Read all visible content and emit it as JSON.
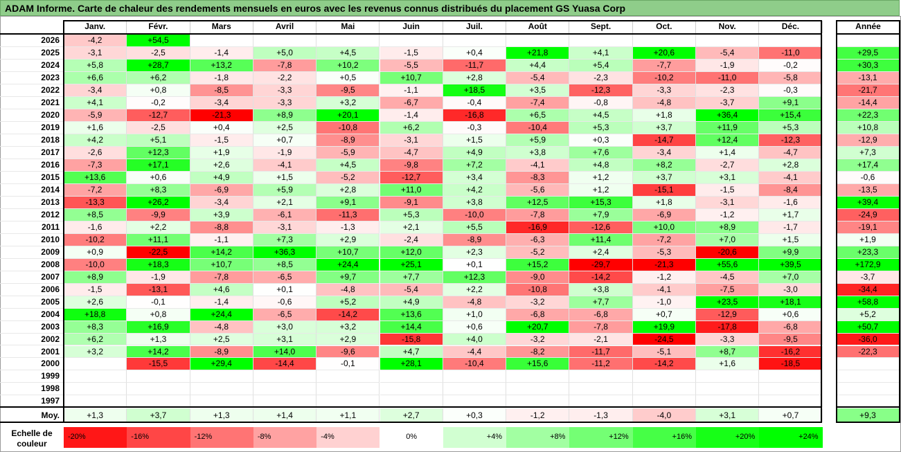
{
  "title": "ADAM Informe. Carte de chaleur des rendements mensuels en euros avec les revenus connus distribués du placement GS Yuasa Corp",
  "months": [
    "Janv.",
    "Févr.",
    "Mars",
    "Avril",
    "Mai",
    "Juin",
    "Juil.",
    "Août",
    "Sept.",
    "Oct.",
    "Nov.",
    "Déc."
  ],
  "year_header": "Année",
  "avg_label": "Moy.",
  "scale_label_line1": "Echelle de",
  "scale_label_line2": "couleur",
  "colors": {
    "negative": "#ff0000",
    "positive": "#00ff00",
    "neutral": "#ffffff",
    "title_bg": "#8fcd8a"
  },
  "chart_data": {
    "type": "heatmap",
    "title": "ADAM Informe. Carte de chaleur des rendements mensuels en euros avec les revenus connus distribués du placement GS Yuasa Corp",
    "rows": [
      {
        "year": "2026",
        "values": [
          "-4,2",
          "+54,5",
          "",
          "",
          "",
          "",
          "",
          "",
          "",
          "",
          "",
          ""
        ],
        "annual": ""
      },
      {
        "year": "2025",
        "values": [
          "-3,1",
          "-2,5",
          "-1,4",
          "+5,0",
          "+4,5",
          "-1,5",
          "+0,4",
          "+21,8",
          "+4,1",
          "+20,6",
          "-5,4",
          "-11,0"
        ],
        "annual": "+29,5"
      },
      {
        "year": "2024",
        "values": [
          "+5,8",
          "+28,7",
          "+13,2",
          "-7,8",
          "+10,2",
          "-5,5",
          "-11,7",
          "+4,4",
          "+5,4",
          "-7,7",
          "-1,9",
          "-0,2"
        ],
        "annual": "+30,3"
      },
      {
        "year": "2023",
        "values": [
          "+6,6",
          "+6,2",
          "-1,8",
          "-2,2",
          "+0,5",
          "+10,7",
          "+2,8",
          "-5,4",
          "-2,3",
          "-10,2",
          "-11,0",
          "-5,8"
        ],
        "annual": "-13,1"
      },
      {
        "year": "2022",
        "values": [
          "-3,4",
          "+0,8",
          "-8,5",
          "-3,3",
          "-9,5",
          "-1,1",
          "+18,5",
          "+3,5",
          "-12,3",
          "-3,3",
          "-2,3",
          "-0,3"
        ],
        "annual": "-21,7"
      },
      {
        "year": "2021",
        "values": [
          "+4,1",
          "-0,2",
          "-3,4",
          "-3,3",
          "+3,2",
          "-6,7",
          "-0,4",
          "-7,4",
          "-0,8",
          "-4,8",
          "-3,7",
          "+9,1"
        ],
        "annual": "-14,4"
      },
      {
        "year": "2020",
        "values": [
          "-5,9",
          "-12,7",
          "-21,3",
          "+8,9",
          "+20,1",
          "-1,4",
          "-16,8",
          "+6,5",
          "+4,5",
          "+1,8",
          "+36,4",
          "+15,4"
        ],
        "annual": "+22,3"
      },
      {
        "year": "2019",
        "values": [
          "+1,6",
          "-2,5",
          "+0,4",
          "+2,5",
          "-10,8",
          "+6,2",
          "-0,3",
          "-10,4",
          "+5,3",
          "+3,7",
          "+11,9",
          "+5,3"
        ],
        "annual": "+10,8"
      },
      {
        "year": "2018",
        "values": [
          "+4,2",
          "+5,1",
          "-1,5",
          "+0,7",
          "-8,9",
          "-3,1",
          "+1,5",
          "+5,9",
          "+0,3",
          "-14,7",
          "+12,4",
          "-12,3"
        ],
        "annual": "-12,9"
      },
      {
        "year": "2017",
        "values": [
          "-2,6",
          "+12,3",
          "+1,9",
          "-1,9",
          "-5,9",
          "-4,7",
          "+4,9",
          "+3,8",
          "+7,6",
          "-3,4",
          "+1,4",
          "-4,7"
        ],
        "annual": "+7,3"
      },
      {
        "year": "2016",
        "values": [
          "-7,3",
          "+17,1",
          "+2,6",
          "-4,1",
          "+4,5",
          "-9,8",
          "+7,2",
          "-4,1",
          "+4,8",
          "+8,2",
          "-2,7",
          "+2,8"
        ],
        "annual": "+17,4"
      },
      {
        "year": "2015",
        "values": [
          "+13,6",
          "+0,6",
          "+4,9",
          "+1,5",
          "-5,2",
          "-12,7",
          "+3,4",
          "-8,3",
          "+1,2",
          "+3,7",
          "+3,1",
          "-4,1"
        ],
        "annual": "-0,6"
      },
      {
        "year": "2014",
        "values": [
          "-7,2",
          "+8,3",
          "-6,9",
          "+5,9",
          "+2,8",
          "+11,0",
          "+4,2",
          "-5,6",
          "+1,2",
          "-15,1",
          "-1,5",
          "-8,4"
        ],
        "annual": "-13,5"
      },
      {
        "year": "2013",
        "values": [
          "-13,3",
          "+26,2",
          "-3,4",
          "+2,1",
          "+9,1",
          "-9,1",
          "+3,8",
          "+12,5",
          "+15,3",
          "+1,8",
          "-3,1",
          "-1,6"
        ],
        "annual": "+39,4"
      },
      {
        "year": "2012",
        "values": [
          "+8,5",
          "-9,9",
          "+3,9",
          "-6,1",
          "-11,3",
          "+5,3",
          "-10,0",
          "-7,8",
          "+7,9",
          "-6,9",
          "-1,2",
          "+1,7"
        ],
        "annual": "-24,9"
      },
      {
        "year": "2011",
        "values": [
          "-1,6",
          "+2,2",
          "-8,8",
          "-3,1",
          "-1,3",
          "+2,1",
          "+5,5",
          "-16,9",
          "-12,6",
          "+10,0",
          "+8,9",
          "-1,7"
        ],
        "annual": "-19,1"
      },
      {
        "year": "2010",
        "values": [
          "-10,2",
          "+11,1",
          "-1,1",
          "+7,3",
          "+2,9",
          "-2,4",
          "-8,9",
          "-6,3",
          "+11,4",
          "-7,2",
          "+7,0",
          "+1,5"
        ],
        "annual": "+1,9"
      },
      {
        "year": "2009",
        "values": [
          "+0,9",
          "-22,5",
          "+14,2",
          "+36,3",
          "+10,7",
          "+12,0",
          "+2,3",
          "-5,2",
          "+2,4",
          "-5,3",
          "-20,6",
          "+9,9"
        ],
        "annual": "+23,3"
      },
      {
        "year": "2008",
        "values": [
          "-10,0",
          "+18,3",
          "+10,7",
          "+8,5",
          "+24,4",
          "+25,1",
          "+0,1",
          "+15,2",
          "-29,7",
          "-21,3",
          "+55,6",
          "+39,5"
        ],
        "annual": "+172,9"
      },
      {
        "year": "2007",
        "values": [
          "+8,9",
          "-1,9",
          "-7,8",
          "-6,5",
          "+9,7",
          "+7,7",
          "+12,3",
          "-9,0",
          "-14,2",
          "-1,2",
          "-4,5",
          "+7,0"
        ],
        "annual": "-3,7"
      },
      {
        "year": "2006",
        "values": [
          "-1,5",
          "-13,1",
          "+4,6",
          "+0,1",
          "-4,8",
          "-5,4",
          "+2,2",
          "-10,8",
          "+3,8",
          "-4,1",
          "-7,5",
          "-3,0"
        ],
        "annual": "-34,4"
      },
      {
        "year": "2005",
        "values": [
          "+2,6",
          "-0,1",
          "-1,4",
          "-0,6",
          "+5,2",
          "+4,9",
          "-4,8",
          "-3,2",
          "+7,7",
          "-1,0",
          "+23,5",
          "+18,1"
        ],
        "annual": "+58,8"
      },
      {
        "year": "2004",
        "values": [
          "+18,8",
          "+0,8",
          "+24,4",
          "-6,5",
          "-14,2",
          "+13,6",
          "+1,0",
          "-6,8",
          "-6,8",
          "+0,7",
          "-12,9",
          "+0,6"
        ],
        "annual": "+5,2"
      },
      {
        "year": "2003",
        "values": [
          "+8,3",
          "+16,9",
          "-4,8",
          "+3,0",
          "+3,2",
          "+14,4",
          "+0,6",
          "+20,7",
          "-7,8",
          "+19,9",
          "-17,8",
          "-6,8"
        ],
        "annual": "+50,7"
      },
      {
        "year": "2002",
        "values": [
          "+6,2",
          "+1,3",
          "+2,5",
          "+3,1",
          "+2,9",
          "-15,8",
          "+4,0",
          "-3,2",
          "-2,1",
          "-24,5",
          "-3,3",
          "-9,5"
        ],
        "annual": "-36,0"
      },
      {
        "year": "2001",
        "values": [
          "+3,2",
          "+14,2",
          "-8,9",
          "+14,0",
          "-9,6",
          "+4,7",
          "-4,4",
          "-8,2",
          "-11,7",
          "-5,1",
          "+8,7",
          "-16,2"
        ],
        "annual": "-22,3"
      },
      {
        "year": "2000",
        "values": [
          "",
          "-15,5",
          "+29,4",
          "-14,4",
          "-0,1",
          "+28,1",
          "-10,4",
          "+15,6",
          "-11,2",
          "-14,2",
          "+1,6",
          "-18,5"
        ],
        "annual": ""
      },
      {
        "year": "1999",
        "values": [
          "",
          "",
          "",
          "",
          "",
          "",
          "",
          "",
          "",
          "",
          "",
          ""
        ],
        "annual": ""
      },
      {
        "year": "1998",
        "values": [
          "",
          "",
          "",
          "",
          "",
          "",
          "",
          "",
          "",
          "",
          "",
          ""
        ],
        "annual": ""
      },
      {
        "year": "1997",
        "values": [
          "",
          "",
          "",
          "",
          "",
          "",
          "",
          "",
          "",
          "",
          "",
          ""
        ],
        "annual": ""
      }
    ],
    "averages": [
      "+1,3",
      "+3,7",
      "+1,3",
      "+1,4",
      "+1,1",
      "+2,7",
      "+0,3",
      "-1,2",
      "-1,3",
      "-4,0",
      "+3,1",
      "+0,7"
    ],
    "average_annual": "+9,3",
    "scale": [
      {
        "label": "-20%",
        "value": -20
      },
      {
        "label": "-16%",
        "value": -16
      },
      {
        "label": "-12%",
        "value": -12
      },
      {
        "label": "-8%",
        "value": -8
      },
      {
        "label": "-4%",
        "value": -4
      },
      {
        "label": "0%",
        "value": 0
      },
      {
        "label": "+4%",
        "value": 4
      },
      {
        "label": "+8%",
        "value": 8
      },
      {
        "label": "+12%",
        "value": 12
      },
      {
        "label": "+16%",
        "value": 16
      },
      {
        "label": "+20%",
        "value": 20
      },
      {
        "label": "+24%",
        "value": 24
      }
    ]
  }
}
